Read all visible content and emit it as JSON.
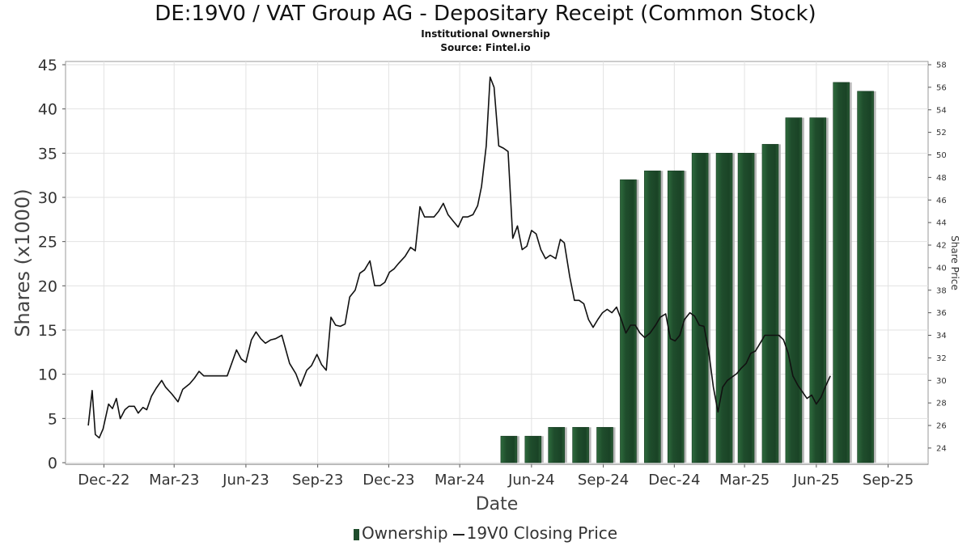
{
  "title": "DE:19V0 / VAT Group AG - Depositary Receipt (Common Stock)",
  "subtitle1": "Institutional Ownership",
  "subtitle2": "Source: Fintel.io",
  "chart_data": {
    "type": "bar",
    "xlabel": "Date",
    "ylabel": "Shares (x1000)",
    "ylabel2": "Share Price",
    "x_ticks": [
      "Dec-22",
      "Mar-23",
      "Jun-23",
      "Sep-23",
      "Dec-23",
      "Mar-24",
      "Jun-24",
      "Sep-24",
      "Dec-24",
      "Mar-25",
      "Jun-25",
      "Sep-25"
    ],
    "ylim": [
      0,
      45
    ],
    "y_ticks": [
      0,
      5,
      10,
      15,
      20,
      25,
      30,
      35,
      40,
      45
    ],
    "y2lim": [
      22.7,
      58
    ],
    "y2_ticks": [
      24,
      26,
      28,
      30,
      32,
      34,
      36,
      38,
      40,
      42,
      44,
      46,
      48,
      50,
      52,
      54,
      56,
      58
    ],
    "grid": true,
    "legend_position": "bottom",
    "colors": {
      "bar": "#1f4d2c",
      "line": "#111111"
    },
    "series": [
      {
        "name": "Ownership",
        "type": "bar",
        "points": [
          [
            "2024-05-17",
            3
          ],
          [
            "2024-06-17",
            3
          ],
          [
            "2024-07-17",
            4
          ],
          [
            "2024-08-17",
            4
          ],
          [
            "2024-09-17",
            4
          ],
          [
            "2024-10-17",
            32
          ],
          [
            "2024-11-17",
            33
          ],
          [
            "2024-12-17",
            33
          ],
          [
            "2025-01-17",
            35
          ],
          [
            "2025-02-17",
            35
          ],
          [
            "2025-03-17",
            35
          ],
          [
            "2025-04-17",
            36
          ],
          [
            "2025-05-17",
            39
          ],
          [
            "2025-06-17",
            39
          ],
          [
            "2025-07-17",
            43
          ],
          [
            "2025-08-17",
            42
          ]
        ]
      },
      {
        "name": "19V0 Closing Price",
        "type": "line",
        "points": [
          [
            "2022-11-25",
            26.0
          ],
          [
            "2022-11-30",
            29.1
          ],
          [
            "2022-12-04",
            25.2
          ],
          [
            "2022-12-09",
            24.9
          ],
          [
            "2022-12-14",
            25.7
          ],
          [
            "2022-12-21",
            27.9
          ],
          [
            "2022-12-26",
            27.5
          ],
          [
            "2022-12-31",
            28.4
          ],
          [
            "2023-01-05",
            26.6
          ],
          [
            "2023-01-11",
            27.4
          ],
          [
            "2023-01-16",
            27.7
          ],
          [
            "2023-01-23",
            27.7
          ],
          [
            "2023-01-28",
            27.1
          ],
          [
            "2023-02-03",
            27.6
          ],
          [
            "2023-02-08",
            27.4
          ],
          [
            "2023-02-14",
            28.6
          ],
          [
            "2023-02-20",
            29.3
          ],
          [
            "2023-02-27",
            30.0
          ],
          [
            "2023-03-04",
            29.4
          ],
          [
            "2023-03-12",
            28.8
          ],
          [
            "2023-03-20",
            28.1
          ],
          [
            "2023-03-26",
            29.2
          ],
          [
            "2023-04-04",
            29.7
          ],
          [
            "2023-04-10",
            30.2
          ],
          [
            "2023-04-16",
            30.8
          ],
          [
            "2023-04-22",
            30.4
          ],
          [
            "2023-05-02",
            30.4
          ],
          [
            "2023-05-14",
            30.4
          ],
          [
            "2023-05-22",
            30.4
          ],
          [
            "2023-06-03",
            32.7
          ],
          [
            "2023-06-09",
            31.9
          ],
          [
            "2023-06-15",
            31.6
          ],
          [
            "2023-06-22",
            33.6
          ],
          [
            "2023-06-28",
            34.3
          ],
          [
            "2023-07-04",
            33.7
          ],
          [
            "2023-07-10",
            33.3
          ],
          [
            "2023-07-17",
            33.6
          ],
          [
            "2023-07-23",
            33.7
          ],
          [
            "2023-07-31",
            34.0
          ],
          [
            "2023-08-10",
            31.5
          ],
          [
            "2023-08-18",
            30.6
          ],
          [
            "2023-08-24",
            29.5
          ],
          [
            "2023-09-01",
            30.9
          ],
          [
            "2023-09-07",
            31.3
          ],
          [
            "2023-09-14",
            32.3
          ],
          [
            "2023-09-20",
            31.4
          ],
          [
            "2023-09-26",
            30.9
          ],
          [
            "2023-10-02",
            35.6
          ],
          [
            "2023-10-08",
            34.9
          ],
          [
            "2023-10-14",
            34.8
          ],
          [
            "2023-10-20",
            35.0
          ],
          [
            "2023-10-26",
            37.4
          ],
          [
            "2023-11-02",
            38.0
          ],
          [
            "2023-11-08",
            39.5
          ],
          [
            "2023-11-14",
            39.8
          ],
          [
            "2023-11-21",
            40.6
          ],
          [
            "2023-11-27",
            38.4
          ],
          [
            "2023-12-04",
            38.4
          ],
          [
            "2023-12-10",
            38.7
          ],
          [
            "2023-12-16",
            39.6
          ],
          [
            "2023-12-22",
            39.9
          ],
          [
            "2023-12-28",
            40.4
          ],
          [
            "2024-01-05",
            41.0
          ],
          [
            "2024-01-12",
            41.8
          ],
          [
            "2024-01-18",
            41.5
          ],
          [
            "2024-01-24",
            45.4
          ],
          [
            "2024-01-30",
            44.5
          ],
          [
            "2024-02-05",
            44.5
          ],
          [
            "2024-02-11",
            44.5
          ],
          [
            "2024-02-17",
            45.0
          ],
          [
            "2024-02-23",
            45.7
          ],
          [
            "2024-02-29",
            44.7
          ],
          [
            "2024-03-07",
            44.1
          ],
          [
            "2024-03-13",
            43.6
          ],
          [
            "2024-03-19",
            44.5
          ],
          [
            "2024-03-25",
            44.5
          ],
          [
            "2024-04-01",
            44.7
          ],
          [
            "2024-04-07",
            45.5
          ],
          [
            "2024-04-12",
            47.2
          ],
          [
            "2024-04-18",
            50.8
          ],
          [
            "2024-04-23",
            56.9
          ],
          [
            "2024-04-28",
            56.0
          ],
          [
            "2024-05-04",
            50.8
          ],
          [
            "2024-05-10",
            50.6
          ],
          [
            "2024-05-16",
            50.3
          ],
          [
            "2024-05-22",
            42.6
          ],
          [
            "2024-05-28",
            43.7
          ],
          [
            "2024-06-03",
            41.6
          ],
          [
            "2024-06-09",
            41.9
          ],
          [
            "2024-06-15",
            43.3
          ],
          [
            "2024-06-21",
            43.0
          ],
          [
            "2024-06-27",
            41.6
          ],
          [
            "2024-07-03",
            40.8
          ],
          [
            "2024-07-09",
            41.1
          ],
          [
            "2024-07-16",
            40.8
          ],
          [
            "2024-07-22",
            42.5
          ],
          [
            "2024-07-27",
            42.2
          ],
          [
            "2024-08-03",
            39.2
          ],
          [
            "2024-08-09",
            37.1
          ],
          [
            "2024-08-15",
            37.1
          ],
          [
            "2024-08-21",
            36.8
          ],
          [
            "2024-08-27",
            35.4
          ],
          [
            "2024-09-02",
            34.7
          ],
          [
            "2024-09-08",
            35.4
          ],
          [
            "2024-09-14",
            36.0
          ],
          [
            "2024-09-20",
            36.3
          ],
          [
            "2024-09-26",
            36.0
          ],
          [
            "2024-10-02",
            36.5
          ],
          [
            "2024-10-08",
            35.4
          ],
          [
            "2024-10-14",
            34.2
          ],
          [
            "2024-10-20",
            34.9
          ],
          [
            "2024-10-26",
            34.9
          ],
          [
            "2024-11-01",
            34.2
          ],
          [
            "2024-11-07",
            33.8
          ],
          [
            "2024-11-14",
            34.2
          ],
          [
            "2024-11-21",
            34.9
          ],
          [
            "2024-11-27",
            35.6
          ],
          [
            "2024-12-04",
            35.9
          ],
          [
            "2024-12-10",
            33.7
          ],
          [
            "2024-12-16",
            33.5
          ],
          [
            "2024-12-22",
            34.0
          ],
          [
            "2024-12-28",
            35.4
          ],
          [
            "2025-01-04",
            36.0
          ],
          [
            "2025-01-10",
            35.7
          ],
          [
            "2025-01-16",
            34.9
          ],
          [
            "2025-01-22",
            34.8
          ],
          [
            "2025-01-28",
            32.6
          ],
          [
            "2025-02-03",
            29.4
          ],
          [
            "2025-02-09",
            27.2
          ],
          [
            "2025-02-15",
            29.4
          ],
          [
            "2025-02-21",
            30.0
          ],
          [
            "2025-02-27",
            30.3
          ],
          [
            "2025-03-05",
            30.6
          ],
          [
            "2025-03-11",
            31.1
          ],
          [
            "2025-03-17",
            31.5
          ],
          [
            "2025-03-23",
            32.4
          ],
          [
            "2025-03-29",
            32.6
          ],
          [
            "2025-04-04",
            33.3
          ],
          [
            "2025-04-10",
            34.0
          ],
          [
            "2025-04-16",
            34.0
          ],
          [
            "2025-04-22",
            34.0
          ],
          [
            "2025-04-28",
            34.0
          ],
          [
            "2025-05-04",
            33.6
          ],
          [
            "2025-05-10",
            32.4
          ],
          [
            "2025-05-16",
            30.4
          ],
          [
            "2025-05-22",
            29.6
          ],
          [
            "2025-05-28",
            29.0
          ],
          [
            "2025-06-03",
            28.4
          ],
          [
            "2025-06-09",
            28.7
          ],
          [
            "2025-06-15",
            27.9
          ],
          [
            "2025-06-21",
            28.5
          ],
          [
            "2025-06-27",
            29.5
          ],
          [
            "2025-07-03",
            30.4
          ]
        ]
      }
    ]
  }
}
